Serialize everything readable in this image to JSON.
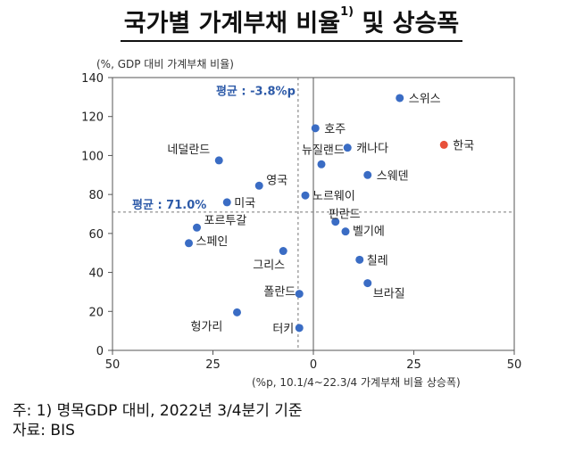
{
  "title": {
    "main": "국가별 가계부채 비율",
    "sup": "1)",
    "suffix": " 및 상승폭"
  },
  "chart_data": {
    "type": "scatter",
    "ylabel": "(%, GDP 대비 가계부채 비율)",
    "xlabel": "(%p, 10.1/4~22.3/4 가계부채 비율 상승폭)",
    "xlim": [
      -50,
      50
    ],
    "ylim": [
      0,
      140
    ],
    "x_ticks": [
      -50,
      -25,
      0,
      25,
      50
    ],
    "x_tick_labels": [
      "50",
      "25",
      "0",
      "25",
      "50"
    ],
    "y_ticks": [
      0,
      20,
      40,
      60,
      80,
      100,
      120,
      140
    ],
    "avg_x": {
      "value": -3.8,
      "label": "평균 : -3.8%p"
    },
    "avg_y": {
      "value": 71.0,
      "label": "평균 : 71.0%"
    },
    "colors": {
      "point": "#3a6cc4",
      "highlight": "#e8503a",
      "avg_label": "#2d5aa8"
    },
    "points": [
      {
        "name": "스위스",
        "x": 21.5,
        "y": 129.5
      },
      {
        "name": "호주",
        "x": 0.5,
        "y": 114.0
      },
      {
        "name": "캐나다",
        "x": 8.5,
        "y": 104.0
      },
      {
        "name": "한국",
        "x": 32.5,
        "y": 105.5,
        "highlight": true
      },
      {
        "name": "네덜란드",
        "x": -23.5,
        "y": 97.5
      },
      {
        "name": "뉴질랜드",
        "x": 2.0,
        "y": 95.5
      },
      {
        "name": "스웨덴",
        "x": 13.5,
        "y": 90.0
      },
      {
        "name": "영국",
        "x": -13.5,
        "y": 84.5
      },
      {
        "name": "노르웨이",
        "x": -2.0,
        "y": 79.5
      },
      {
        "name": "미국",
        "x": -21.5,
        "y": 76.0
      },
      {
        "name": "핀란드",
        "x": 5.5,
        "y": 66.0
      },
      {
        "name": "포르투갈",
        "x": -29.0,
        "y": 63.0
      },
      {
        "name": "벨기에",
        "x": 8.0,
        "y": 61.0
      },
      {
        "name": "스페인",
        "x": -31.0,
        "y": 55.0
      },
      {
        "name": "그리스",
        "x": -7.5,
        "y": 51.0
      },
      {
        "name": "칠레",
        "x": 11.5,
        "y": 46.5
      },
      {
        "name": "브라질",
        "x": 13.5,
        "y": 34.5
      },
      {
        "name": "폴란드",
        "x": -3.5,
        "y": 29.0
      },
      {
        "name": "헝가리",
        "x": -19.0,
        "y": 19.5
      },
      {
        "name": "터키",
        "x": -3.5,
        "y": 11.5
      }
    ]
  },
  "notes": {
    "line1": "주: 1) 명목GDP 대비, 2022년 3/4분기 기준",
    "line2": "자료: BIS"
  }
}
